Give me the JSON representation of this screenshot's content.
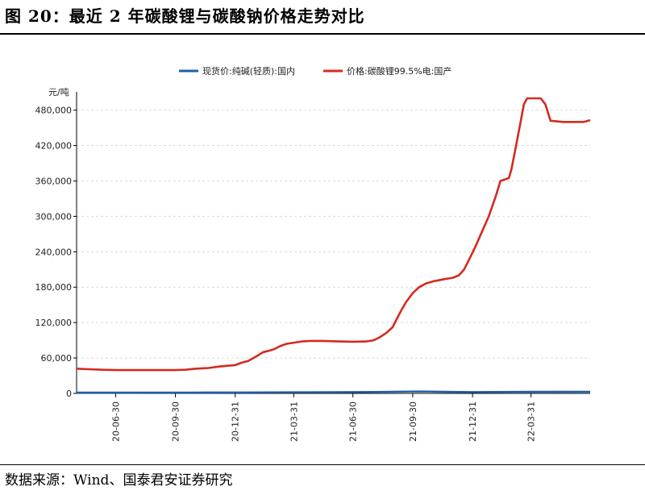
{
  "figure": {
    "title": "图 20：最近 2 年碳酸锂与碳酸钠价格走势对比",
    "source": "数据来源：Wind、国泰君安证券研究"
  },
  "chart_data": {
    "type": "line",
    "title": "",
    "xlabel": "",
    "ylabel": "元/吨",
    "ylim": [
      0,
      500000
    ],
    "yticks": [
      0,
      60000,
      120000,
      180000,
      240000,
      300000,
      360000,
      420000,
      480000
    ],
    "ytick_labels": [
      "0",
      "60,000",
      "120,000",
      "180,000",
      "240,000",
      "300,000",
      "360,000",
      "420,000",
      "480,000"
    ],
    "xlim": [
      "2020-05-01",
      "2022-06-30"
    ],
    "xticks": [
      "2020-06-30",
      "2020-09-30",
      "2020-12-31",
      "2021-03-31",
      "2021-06-30",
      "2021-09-30",
      "2021-12-31",
      "2022-03-31"
    ],
    "xtick_labels": [
      "20-06-30",
      "20-09-30",
      "20-12-31",
      "21-03-31",
      "21-06-30",
      "21-09-30",
      "21-12-31",
      "22-03-31"
    ],
    "grid": "horizontal-dashed",
    "legend_position": "top-center",
    "series": [
      {
        "name": "现货价:纯碱(轻质):国内",
        "color": "#1f5fa8",
        "points": [
          [
            "2020-05-01",
            1400
          ],
          [
            "2020-08-01",
            1400
          ],
          [
            "2020-11-01",
            1500
          ],
          [
            "2021-01-15",
            1600
          ],
          [
            "2021-04-01",
            1900
          ],
          [
            "2021-06-01",
            2100
          ],
          [
            "2021-08-01",
            2400
          ],
          [
            "2021-09-15",
            3000
          ],
          [
            "2021-10-15",
            3300
          ],
          [
            "2021-11-15",
            2800
          ],
          [
            "2021-12-31",
            2300
          ],
          [
            "2022-02-01",
            2500
          ],
          [
            "2022-03-31",
            2700
          ],
          [
            "2022-05-01",
            2800
          ],
          [
            "2022-06-30",
            2900
          ]
        ]
      },
      {
        "name": "价格:碳酸锂99.5%电:国产",
        "color": "#d42a1f",
        "points": [
          [
            "2020-05-01",
            42000
          ],
          [
            "2020-05-20",
            41000
          ],
          [
            "2020-06-10",
            40000
          ],
          [
            "2020-07-01",
            39500
          ],
          [
            "2020-09-30",
            39500
          ],
          [
            "2020-10-15",
            40000
          ],
          [
            "2020-11-01",
            42000
          ],
          [
            "2020-11-20",
            43000
          ],
          [
            "2020-12-10",
            46000
          ],
          [
            "2020-12-31",
            48000
          ],
          [
            "2021-01-10",
            52000
          ],
          [
            "2021-01-20",
            55000
          ],
          [
            "2021-01-28",
            60000
          ],
          [
            "2021-02-05",
            65000
          ],
          [
            "2021-02-12",
            70000
          ],
          [
            "2021-02-20",
            72000
          ],
          [
            "2021-03-01",
            75000
          ],
          [
            "2021-03-10",
            80000
          ],
          [
            "2021-03-20",
            84000
          ],
          [
            "2021-04-01",
            86000
          ],
          [
            "2021-04-12",
            88000
          ],
          [
            "2021-04-25",
            89000
          ],
          [
            "2021-05-15",
            89000
          ],
          [
            "2021-06-10",
            88000
          ],
          [
            "2021-07-01",
            87500
          ],
          [
            "2021-07-20",
            88000
          ],
          [
            "2021-08-01",
            90000
          ],
          [
            "2021-08-10",
            95000
          ],
          [
            "2021-08-20",
            102000
          ],
          [
            "2021-08-30",
            112000
          ],
          [
            "2021-09-05",
            125000
          ],
          [
            "2021-09-12",
            140000
          ],
          [
            "2021-09-20",
            155000
          ],
          [
            "2021-09-30",
            170000
          ],
          [
            "2021-10-10",
            180000
          ],
          [
            "2021-10-20",
            186000
          ],
          [
            "2021-11-01",
            190000
          ],
          [
            "2021-11-15",
            193000
          ],
          [
            "2021-12-01",
            196000
          ],
          [
            "2021-12-10",
            200000
          ],
          [
            "2021-12-18",
            210000
          ],
          [
            "2021-12-25",
            225000
          ],
          [
            "2022-01-05",
            250000
          ],
          [
            "2022-01-15",
            275000
          ],
          [
            "2022-01-25",
            300000
          ],
          [
            "2022-02-05",
            335000
          ],
          [
            "2022-02-12",
            360000
          ],
          [
            "2022-02-25",
            365000
          ],
          [
            "2022-03-01",
            380000
          ],
          [
            "2022-03-08",
            420000
          ],
          [
            "2022-03-15",
            460000
          ],
          [
            "2022-03-20",
            490000
          ],
          [
            "2022-03-25",
            500000
          ],
          [
            "2022-04-15",
            500000
          ],
          [
            "2022-04-22",
            490000
          ],
          [
            "2022-04-30",
            462000
          ],
          [
            "2022-05-20",
            460000
          ],
          [
            "2022-06-20",
            460000
          ],
          [
            "2022-06-30",
            463000
          ]
        ]
      }
    ]
  }
}
